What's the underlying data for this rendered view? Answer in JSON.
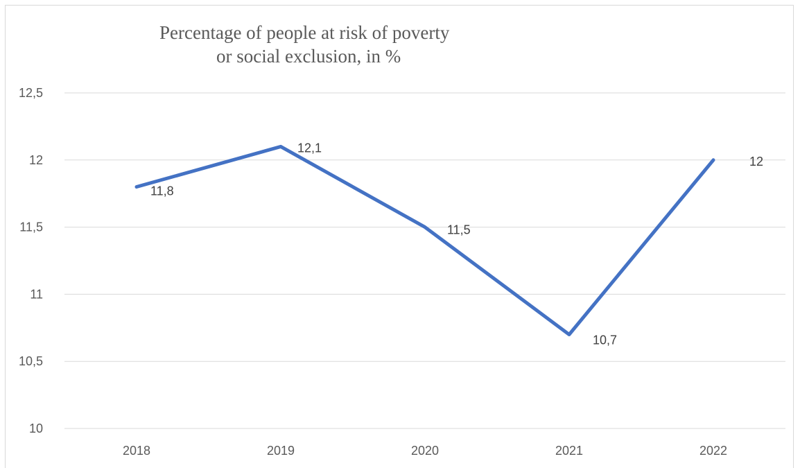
{
  "chart_data": {
    "type": "line",
    "title_line1": "Percentage of people at risk of poverty",
    "title_line2": "or social exclusion,  in %",
    "xlabel": "",
    "ylabel": "",
    "categories": [
      "2018",
      "2019",
      "2020",
      "2021",
      "2022"
    ],
    "series": [
      {
        "values": [
          11.8,
          12.1,
          11.5,
          10.7,
          12
        ]
      }
    ],
    "data_labels": [
      "11,8",
      "12,1",
      "11,5",
      "10,7",
      "12"
    ],
    "y_tick_labels": [
      "10",
      "10,5",
      "11",
      "11,5",
      "12",
      "12,5"
    ],
    "y_ticks": [
      10,
      10.5,
      11,
      11.5,
      12,
      12.5
    ],
    "ylim": [
      10,
      12.5
    ],
    "grid": true,
    "legend": "none",
    "line_color": "#4472c4",
    "grid_color": "#d9d9d9"
  }
}
